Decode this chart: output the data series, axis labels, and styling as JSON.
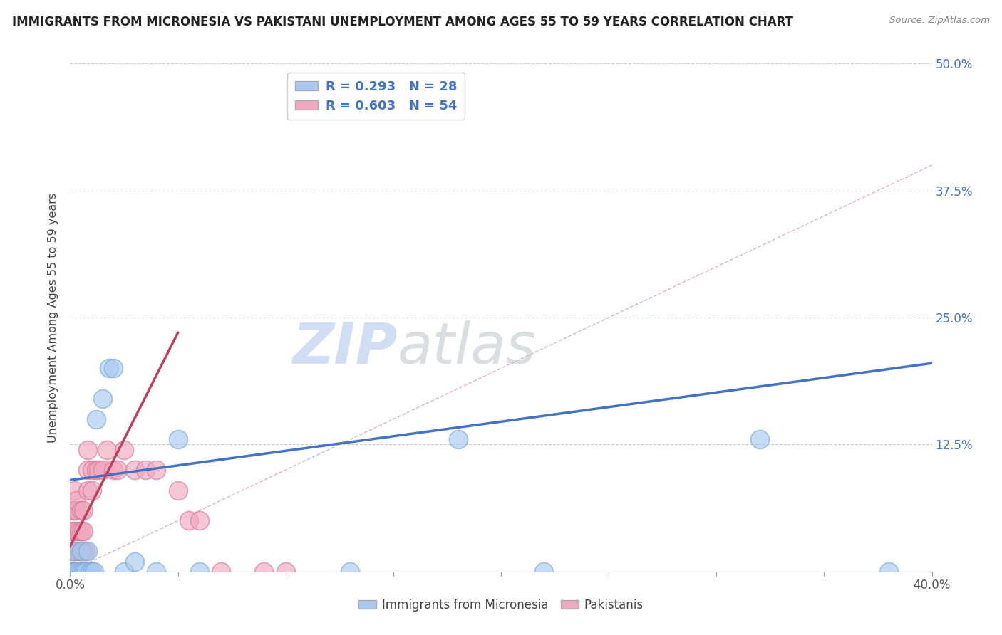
{
  "title": "IMMIGRANTS FROM MICRONESIA VS PAKISTANI UNEMPLOYMENT AMONG AGES 55 TO 59 YEARS CORRELATION CHART",
  "source": "Source: ZipAtlas.com",
  "ylabel": "Unemployment Among Ages 55 to 59 years",
  "xlim": [
    0.0,
    0.4
  ],
  "ylim": [
    0.0,
    0.5
  ],
  "xticks": [
    0.0,
    0.05,
    0.1,
    0.15,
    0.2,
    0.25,
    0.3,
    0.35,
    0.4
  ],
  "yticks": [
    0.0,
    0.125,
    0.25,
    0.375,
    0.5
  ],
  "ytick_labels": [
    "",
    "12.5%",
    "25.0%",
    "37.5%",
    "50.0%"
  ],
  "blue_scatter_color": "#A8C8F0",
  "blue_edge_color": "#7aaad4",
  "pink_scatter_color": "#F0A8BE",
  "pink_edge_color": "#d47a9a",
  "blue_line_color": "#4472C4",
  "pink_line_color": "#C0405A",
  "diag_color": "#D8A0B0",
  "watermark_zip_color": "#C8D8F0",
  "watermark_atlas_color": "#C0C8D0",
  "micronesia_x": [
    0.001,
    0.002,
    0.002,
    0.003,
    0.004,
    0.005,
    0.005,
    0.006,
    0.007,
    0.008,
    0.009,
    0.01,
    0.011,
    0.012,
    0.015,
    0.018,
    0.02,
    0.025,
    0.03,
    0.04,
    0.05,
    0.06,
    0.13,
    0.18,
    0.22,
    0.32,
    0.38
  ],
  "micronesia_y": [
    0.0,
    0.0,
    0.02,
    0.0,
    0.0,
    0.0,
    0.02,
    0.0,
    0.0,
    0.02,
    0.0,
    0.0,
    0.0,
    0.15,
    0.17,
    0.2,
    0.2,
    0.0,
    0.01,
    0.0,
    0.13,
    0.0,
    0.0,
    0.13,
    0.0,
    0.13,
    0.0
  ],
  "pakistani_x": [
    0.0005,
    0.001,
    0.001,
    0.001,
    0.001,
    0.001,
    0.001,
    0.0015,
    0.002,
    0.002,
    0.002,
    0.002,
    0.002,
    0.002,
    0.003,
    0.003,
    0.003,
    0.003,
    0.003,
    0.004,
    0.004,
    0.004,
    0.005,
    0.005,
    0.005,
    0.005,
    0.006,
    0.006,
    0.006,
    0.006,
    0.007,
    0.007,
    0.008,
    0.008,
    0.008,
    0.009,
    0.01,
    0.01,
    0.012,
    0.013,
    0.015,
    0.017,
    0.02,
    0.022,
    0.025,
    0.03,
    0.035,
    0.04,
    0.05,
    0.055,
    0.06,
    0.07,
    0.09,
    0.1
  ],
  "pakistani_y": [
    0.0,
    0.0,
    0.0,
    0.0,
    0.02,
    0.04,
    0.06,
    0.0,
    0.0,
    0.0,
    0.02,
    0.04,
    0.06,
    0.08,
    0.0,
    0.02,
    0.04,
    0.06,
    0.07,
    0.0,
    0.02,
    0.04,
    0.0,
    0.02,
    0.04,
    0.06,
    0.0,
    0.02,
    0.04,
    0.06,
    0.0,
    0.02,
    0.08,
    0.1,
    0.12,
    0.0,
    0.08,
    0.1,
    0.1,
    0.1,
    0.1,
    0.12,
    0.1,
    0.1,
    0.12,
    0.1,
    0.1,
    0.1,
    0.08,
    0.05,
    0.05,
    0.0,
    0.0,
    0.0
  ],
  "blue_trend_x0": 0.0,
  "blue_trend_y0": 0.09,
  "blue_trend_x1": 0.4,
  "blue_trend_y1": 0.205,
  "pink_trend_x0": 0.0,
  "pink_trend_y0": 0.025,
  "pink_trend_x1": 0.05,
  "pink_trend_y1": 0.235
}
